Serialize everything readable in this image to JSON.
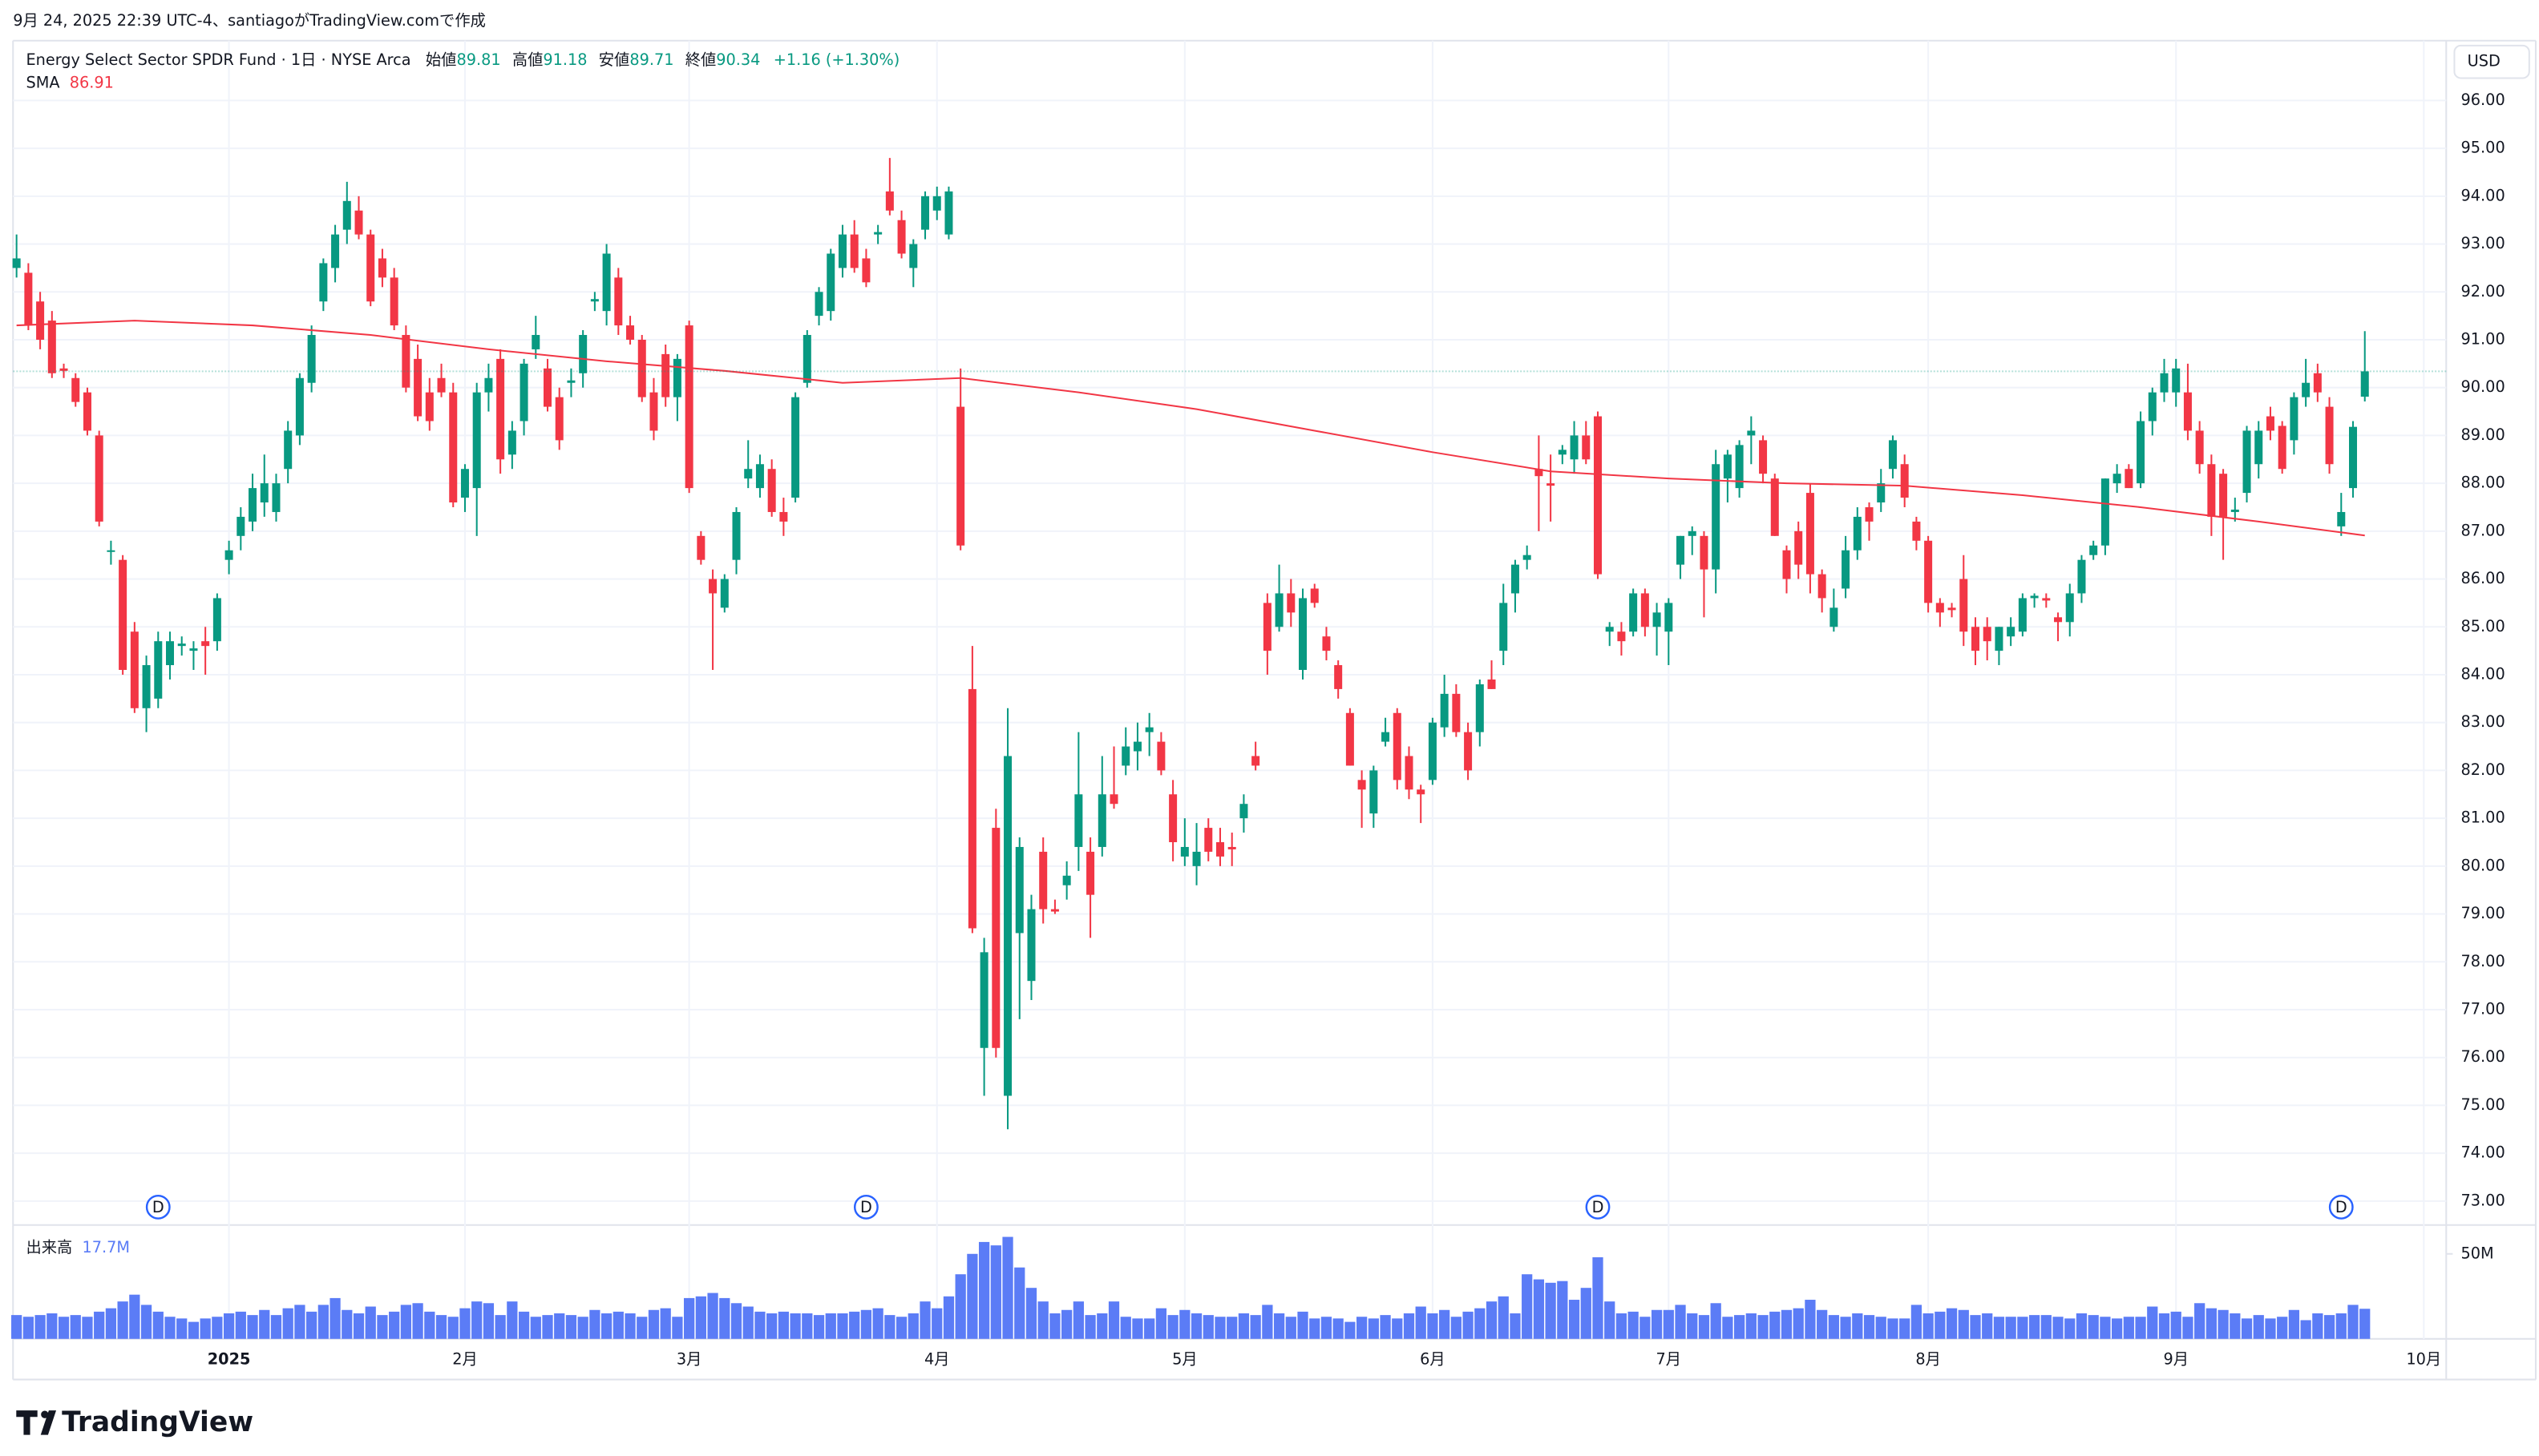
{
  "caption": "9月 24, 2025 22:39 UTC-4、santiagoがTradingView.comで作成",
  "chart_data": {
    "type": "candlestick",
    "title": "Energy Select Sector SPDR Fund · 1日 · NYSE Arca",
    "legend_labels": {
      "open": "始値",
      "high": "高値",
      "low": "安値",
      "close": "終値"
    },
    "change": "+1.16 (+1.30%)",
    "currency": "USD",
    "colors": {
      "up": "#089981",
      "down": "#f23645"
    },
    "candles": {
      "open": [
        92.5,
        92.4,
        91.8,
        91.4,
        90.4,
        90.2,
        89.9,
        89.0,
        86.6,
        86.4,
        84.9,
        83.3,
        83.5,
        84.2,
        84.6,
        84.5,
        84.7,
        84.7,
        86.4,
        86.9,
        87.2,
        87.6,
        87.4,
        88.3,
        89.0,
        90.1,
        91.8,
        92.5,
        93.3,
        93.7,
        93.2,
        92.7,
        92.3,
        91.1,
        90.6,
        89.9,
        90.2,
        89.9,
        87.7,
        87.9,
        89.9,
        90.6,
        88.6,
        89.3,
        90.8,
        90.4,
        89.8,
        90.1,
        90.3,
        91.8,
        91.6,
        92.3,
        91.3,
        91.0,
        89.9,
        90.7,
        89.8,
        91.3,
        86.9,
        86.0,
        85.4,
        86.4,
        88.1,
        87.9,
        88.3,
        87.4,
        87.7,
        90.1,
        91.5,
        91.6,
        92.5,
        93.2,
        92.7,
        93.2,
        94.1,
        93.5,
        92.5,
        93.3,
        93.7,
        93.2,
        89.6,
        83.7,
        76.2,
        80.8,
        75.2,
        78.6,
        77.6,
        80.3,
        79.1,
        79.6,
        80.4,
        80.3,
        80.4,
        81.5,
        82.1,
        82.4,
        82.8,
        82.6,
        81.5,
        80.2,
        80.0,
        80.8,
        80.5,
        80.4,
        81.0,
        82.3,
        85.5,
        85.0,
        85.7,
        84.1,
        85.8,
        84.8,
        84.2,
        83.2,
        81.8,
        81.1,
        82.6,
        83.2,
        82.3,
        81.6,
        81.8,
        82.9,
        83.6,
        82.8,
        82.8,
        83.9,
        84.5,
        85.7,
        86.4,
        88.3,
        88.0,
        88.6,
        88.5,
        89.0,
        89.4,
        84.9,
        84.9,
        84.9,
        85.7,
        85.0,
        84.9,
        86.3,
        86.9,
        86.9,
        86.2,
        88.1,
        87.9,
        89.0,
        88.9,
        88.1,
        86.6,
        87.0,
        87.8,
        86.1,
        85.0,
        85.8,
        86.6,
        87.5,
        87.6,
        88.3,
        88.4,
        87.2,
        86.8,
        85.5,
        85.4,
        86.0,
        85.0,
        85.0,
        84.5,
        84.8,
        84.9,
        85.6,
        85.6,
        85.2,
        85.1,
        85.7,
        86.5,
        86.7,
        88.0,
        88.3,
        88.0,
        89.3,
        89.9,
        89.9,
        89.9,
        89.1,
        88.4,
        88.2,
        87.4,
        87.8,
        88.4,
        89.4,
        89.2,
        88.9,
        89.8,
        90.3,
        89.6,
        87.1,
        87.9,
        89.81
      ],
      "high": [
        93.2,
        92.6,
        92.0,
        91.6,
        90.5,
        90.3,
        90.0,
        89.1,
        86.8,
        86.5,
        85.1,
        84.4,
        84.9,
        84.9,
        84.8,
        84.7,
        85.0,
        85.7,
        86.8,
        87.5,
        88.2,
        88.6,
        88.2,
        89.3,
        90.3,
        91.3,
        92.7,
        93.4,
        94.3,
        94.0,
        93.3,
        92.9,
        92.5,
        91.3,
        90.9,
        90.2,
        90.5,
        90.1,
        88.4,
        90.1,
        90.5,
        90.8,
        89.3,
        90.6,
        91.5,
        90.6,
        90.0,
        90.4,
        91.2,
        92.0,
        93.0,
        92.5,
        91.5,
        91.1,
        90.2,
        90.9,
        90.7,
        91.4,
        87.0,
        86.2,
        86.1,
        87.5,
        88.9,
        88.6,
        88.5,
        87.7,
        89.9,
        91.2,
        92.1,
        92.9,
        93.4,
        93.5,
        92.9,
        93.4,
        94.8,
        93.7,
        93.1,
        94.1,
        94.2,
        94.2,
        90.4,
        84.6,
        78.5,
        81.2,
        83.3,
        80.6,
        79.4,
        80.6,
        79.3,
        80.1,
        82.8,
        80.6,
        82.3,
        82.5,
        82.9,
        83.0,
        83.2,
        82.8,
        81.8,
        81.0,
        80.9,
        81.0,
        80.8,
        80.7,
        81.5,
        82.6,
        85.7,
        86.3,
        86.0,
        85.8,
        85.9,
        85.0,
        84.3,
        83.3,
        82.0,
        82.1,
        83.1,
        83.3,
        82.5,
        81.7,
        83.1,
        84.0,
        83.8,
        83.0,
        83.9,
        84.3,
        85.9,
        86.4,
        86.7,
        89.0,
        88.6,
        88.8,
        89.3,
        89.3,
        89.5,
        85.1,
        85.1,
        85.8,
        85.8,
        85.5,
        85.6,
        86.9,
        87.1,
        87.0,
        88.7,
        88.7,
        88.9,
        89.4,
        89.0,
        88.2,
        86.7,
        87.2,
        88.0,
        86.2,
        85.8,
        86.9,
        87.5,
        87.6,
        88.3,
        89.0,
        88.6,
        87.3,
        86.9,
        85.6,
        85.5,
        86.5,
        85.2,
        85.2,
        85.0,
        85.2,
        85.7,
        85.7,
        85.7,
        85.3,
        85.9,
        86.5,
        86.8,
        88.1,
        88.4,
        88.4,
        89.5,
        90.0,
        90.6,
        90.6,
        90.5,
        89.3,
        88.6,
        88.3,
        87.7,
        89.2,
        89.3,
        89.6,
        89.3,
        89.9,
        90.6,
        90.5,
        89.8,
        87.8,
        89.3,
        91.18
      ],
      "low": [
        92.3,
        91.2,
        90.8,
        90.2,
        90.2,
        89.6,
        89.0,
        87.1,
        86.3,
        84.0,
        83.2,
        82.8,
        83.3,
        83.9,
        84.4,
        84.1,
        84.0,
        84.5,
        86.1,
        86.6,
        87.0,
        87.3,
        87.2,
        88.0,
        88.8,
        89.9,
        91.6,
        92.2,
        93.0,
        93.1,
        91.7,
        92.1,
        91.2,
        89.9,
        89.3,
        89.1,
        89.8,
        87.5,
        87.4,
        86.9,
        89.5,
        88.2,
        88.3,
        89.0,
        90.6,
        89.5,
        88.7,
        89.8,
        90.0,
        91.6,
        91.3,
        91.1,
        90.9,
        89.7,
        88.9,
        89.6,
        89.3,
        87.8,
        86.3,
        84.1,
        85.3,
        86.1,
        87.9,
        87.7,
        87.3,
        86.9,
        87.6,
        90.0,
        91.3,
        91.4,
        92.3,
        92.4,
        92.1,
        93.0,
        93.6,
        92.7,
        92.1,
        93.1,
        93.5,
        93.1,
        86.6,
        78.6,
        75.2,
        76.0,
        74.5,
        76.8,
        77.2,
        78.8,
        79.0,
        79.3,
        79.9,
        78.5,
        80.2,
        81.2,
        81.9,
        82.0,
        82.3,
        81.9,
        80.1,
        80.0,
        79.6,
        80.1,
        80.0,
        80.0,
        80.7,
        82.0,
        84.0,
        84.9,
        85.0,
        83.9,
        85.4,
        84.3,
        83.5,
        82.1,
        80.8,
        80.8,
        82.5,
        81.6,
        81.4,
        80.9,
        81.7,
        82.7,
        82.7,
        81.8,
        82.5,
        83.7,
        84.2,
        85.3,
        86.2,
        87.0,
        87.2,
        88.4,
        88.2,
        88.4,
        86.0,
        84.6,
        84.4,
        84.8,
        84.8,
        84.4,
        84.2,
        86.0,
        86.5,
        85.2,
        85.7,
        87.6,
        87.7,
        88.4,
        88.0,
        86.9,
        85.7,
        86.0,
        85.7,
        85.3,
        84.9,
        85.6,
        86.4,
        86.8,
        87.4,
        88.1,
        87.5,
        86.6,
        85.3,
        85.0,
        85.2,
        84.6,
        84.2,
        84.3,
        84.2,
        84.6,
        84.8,
        85.4,
        85.4,
        84.7,
        84.8,
        85.5,
        86.4,
        86.5,
        87.8,
        87.9,
        87.9,
        89.0,
        89.7,
        89.6,
        88.9,
        88.2,
        86.9,
        86.4,
        87.2,
        87.6,
        88.1,
        88.9,
        88.2,
        88.6,
        89.6,
        89.7,
        88.2,
        86.9,
        87.7,
        89.71
      ],
      "close": [
        92.7,
        91.3,
        91.0,
        90.3,
        90.35,
        89.7,
        89.1,
        87.2,
        86.6,
        84.1,
        83.3,
        84.2,
        84.7,
        84.7,
        84.65,
        84.55,
        84.6,
        85.6,
        86.6,
        87.3,
        87.9,
        88.0,
        88.0,
        89.1,
        90.2,
        91.1,
        92.6,
        93.2,
        93.9,
        93.2,
        91.8,
        92.3,
        91.3,
        90.0,
        89.4,
        89.3,
        89.9,
        87.6,
        88.3,
        89.9,
        90.2,
        88.5,
        89.1,
        90.5,
        91.1,
        89.6,
        88.9,
        90.15,
        91.1,
        91.85,
        92.8,
        91.3,
        91.0,
        89.8,
        89.1,
        89.8,
        90.6,
        87.9,
        86.4,
        85.7,
        86.0,
        87.4,
        88.3,
        88.4,
        87.4,
        87.2,
        89.8,
        91.1,
        92.0,
        92.8,
        93.2,
        92.5,
        92.2,
        93.25,
        93.7,
        92.8,
        93.0,
        94.0,
        94.0,
        94.1,
        86.7,
        78.7,
        78.2,
        76.2,
        82.3,
        80.4,
        79.1,
        79.1,
        79.05,
        79.8,
        81.5,
        79.4,
        81.5,
        81.3,
        82.5,
        82.6,
        82.9,
        82.0,
        80.5,
        80.4,
        80.3,
        80.3,
        80.2,
        80.35,
        81.3,
        82.1,
        84.5,
        85.7,
        85.3,
        85.6,
        85.5,
        84.5,
        83.7,
        82.1,
        81.6,
        82.0,
        82.8,
        81.8,
        81.6,
        81.5,
        83.0,
        83.6,
        82.8,
        82.0,
        83.8,
        83.7,
        85.5,
        86.3,
        86.5,
        88.15,
        87.95,
        88.7,
        89.0,
        88.5,
        86.1,
        85.0,
        84.7,
        85.7,
        85.0,
        85.3,
        85.5,
        86.9,
        87.0,
        86.2,
        88.4,
        88.6,
        88.8,
        89.1,
        88.2,
        86.9,
        86.0,
        86.3,
        86.1,
        85.6,
        85.4,
        86.6,
        87.3,
        87.2,
        88.0,
        88.9,
        87.7,
        86.8,
        85.5,
        85.3,
        85.35,
        84.9,
        84.5,
        84.7,
        85.0,
        85.0,
        85.6,
        85.65,
        85.55,
        85.1,
        85.7,
        86.4,
        86.7,
        88.1,
        88.2,
        87.9,
        89.3,
        89.9,
        90.3,
        90.4,
        89.1,
        88.4,
        87.3,
        87.3,
        87.45,
        89.1,
        89.1,
        89.1,
        88.3,
        89.8,
        90.1,
        89.9,
        88.4,
        87.4,
        89.18,
        90.34
      ]
    },
    "sma": {
      "name": "SMA",
      "color": "#f23645",
      "x": [
        0,
        10,
        20,
        30,
        40,
        50,
        60,
        70,
        80,
        90,
        100,
        110,
        120,
        130,
        140,
        150,
        160,
        170,
        180,
        190,
        199
      ],
      "values": [
        91.3,
        91.4,
        91.3,
        91.1,
        90.8,
        90.55,
        90.35,
        90.1,
        90.2,
        89.9,
        89.55,
        89.1,
        88.65,
        88.25,
        88.1,
        88.0,
        87.95,
        87.75,
        87.5,
        87.2,
        86.91
      ]
    },
    "volume": {
      "name": "出来高",
      "color": "#5b7cf6",
      "last_label": "17.7M",
      "ylim": [
        0,
        67
      ],
      "yticks": [
        {
          "value": 50,
          "label": "50M"
        }
      ],
      "values": [
        14,
        13,
        14,
        15,
        13,
        14,
        13,
        16,
        18,
        22,
        26,
        20,
        16,
        13,
        12,
        10,
        12,
        13,
        15,
        16,
        14,
        17,
        14,
        18,
        20,
        16,
        20,
        24,
        17,
        15,
        19,
        14,
        16,
        20,
        21,
        16,
        14,
        13,
        18,
        22,
        21,
        14,
        22,
        16,
        13,
        14,
        15,
        14,
        13,
        17,
        15,
        16,
        15,
        13,
        17,
        18,
        13,
        24,
        25,
        27,
        24,
        21,
        19,
        16,
        15,
        16,
        15,
        15,
        14,
        15,
        15,
        16,
        17,
        18,
        14,
        13,
        15,
        22,
        18,
        25,
        38,
        50,
        57,
        55,
        60,
        42,
        30,
        22,
        15,
        17,
        22,
        14,
        15,
        22,
        13,
        12,
        12,
        18,
        14,
        17,
        15,
        14,
        13,
        13,
        15,
        14,
        20,
        15,
        13,
        16,
        12,
        13,
        12,
        10,
        13,
        12,
        14,
        12,
        15,
        19,
        15,
        17,
        13,
        16,
        18,
        22,
        25,
        15,
        38,
        35,
        33,
        34,
        23,
        30,
        48,
        22,
        15,
        16,
        13,
        17,
        17,
        20,
        15,
        14,
        21,
        13,
        14,
        15,
        14,
        16,
        17,
        18,
        23,
        17,
        14,
        13,
        15,
        14,
        13,
        12,
        12,
        20,
        15,
        16,
        18,
        17,
        14,
        15,
        13,
        13,
        13,
        14,
        14,
        13,
        12,
        15,
        14,
        13,
        12,
        13,
        13,
        19,
        15,
        16,
        13,
        21,
        18,
        17,
        15,
        12,
        14,
        12,
        13,
        17,
        11,
        15,
        14,
        15,
        20,
        17.7
      ]
    },
    "ylim": [
      72.5,
      97.25
    ],
    "yticks": [
      {
        "value": 73,
        "label": "73.00"
      },
      {
        "value": 74,
        "label": "74.00"
      },
      {
        "value": 75,
        "label": "75.00"
      },
      {
        "value": 76,
        "label": "76.00"
      },
      {
        "value": 77,
        "label": "77.00"
      },
      {
        "value": 78,
        "label": "78.00"
      },
      {
        "value": 79,
        "label": "79.00"
      },
      {
        "value": 80,
        "label": "80.00"
      },
      {
        "value": 81,
        "label": "81.00"
      },
      {
        "value": 82,
        "label": "82.00"
      },
      {
        "value": 83,
        "label": "83.00"
      },
      {
        "value": 84,
        "label": "84.00"
      },
      {
        "value": 85,
        "label": "85.00"
      },
      {
        "value": 86,
        "label": "86.00"
      },
      {
        "value": 87,
        "label": "87.00"
      },
      {
        "value": 88,
        "label": "88.00"
      },
      {
        "value": 89,
        "label": "89.00"
      },
      {
        "value": 90,
        "label": "90.00"
      },
      {
        "value": 91,
        "label": "91.00"
      },
      {
        "value": 92,
        "label": "92.00"
      },
      {
        "value": 93,
        "label": "93.00"
      },
      {
        "value": 94,
        "label": "94.00"
      },
      {
        "value": 95,
        "label": "95.00"
      },
      {
        "value": 96,
        "label": "96.00"
      }
    ],
    "xlim": [
      -0.3,
      205.9
    ],
    "xticks": [
      {
        "value": 18,
        "label": "2025"
      },
      {
        "value": 38,
        "label": "2月"
      },
      {
        "value": 57,
        "label": "3月"
      },
      {
        "value": 78,
        "label": "4月"
      },
      {
        "value": 99,
        "label": "5月"
      },
      {
        "value": 120,
        "label": "6月"
      },
      {
        "value": 140,
        "label": "7月"
      },
      {
        "value": 162,
        "label": "8月"
      },
      {
        "value": 183,
        "label": "9月"
      },
      {
        "value": 204,
        "label": "10月"
      }
    ],
    "dividends": {
      "x": [
        12,
        72,
        134,
        197
      ],
      "label": "D"
    },
    "grid": true,
    "last_price_line": true
  },
  "footer": {
    "logo": "TradingView"
  }
}
